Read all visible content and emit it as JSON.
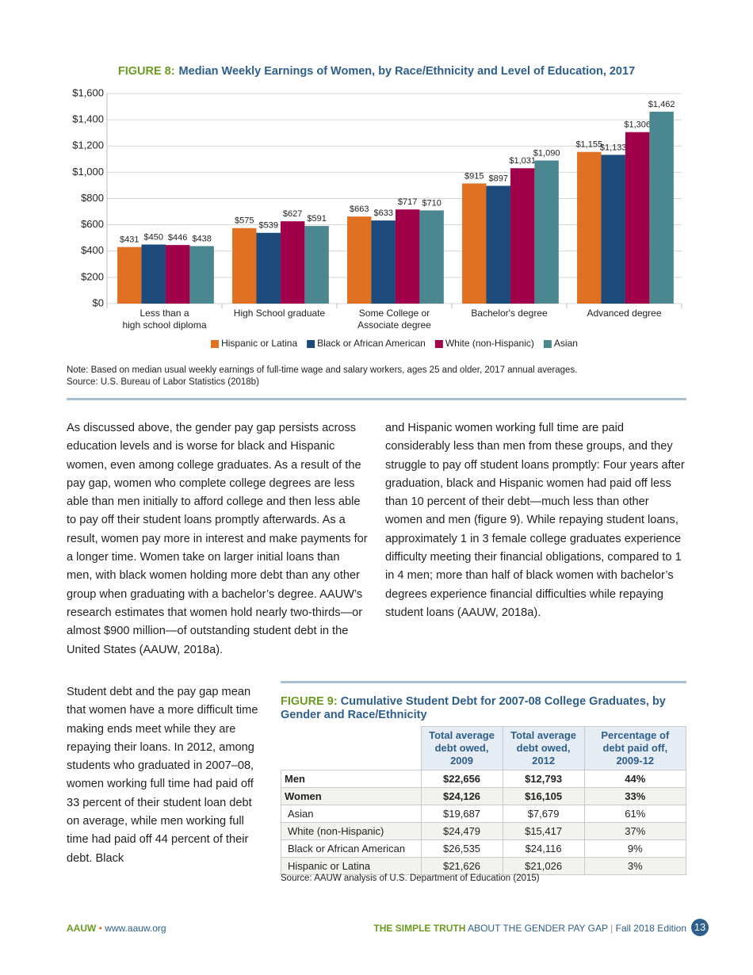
{
  "chart_data": {
    "type": "bar",
    "figure_label": "FIGURE 8:",
    "title": "Median Weekly Earnings of Women, by Race/Ethnicity and Level of Education, 2017",
    "categories": [
      "Less than a\nhigh school diploma",
      "High School graduate",
      "Some College or\nAssociate degree",
      "Bachelor's degree",
      "Advanced degree"
    ],
    "series": [
      {
        "name": "Hispanic or Latina",
        "color": "#e07022",
        "values": [
          431,
          575,
          663,
          915,
          1155
        ],
        "value_labels": [
          "$431",
          "$575",
          "$663",
          "$915",
          "$1,155"
        ]
      },
      {
        "name": "Black or African American",
        "color": "#1c4a7b",
        "values": [
          450,
          539,
          633,
          897,
          1133
        ],
        "value_labels": [
          "$450",
          "$539",
          "$633",
          "$897",
          "$1,133"
        ]
      },
      {
        "name": "White (non-Hispanic)",
        "color": "#a1014b",
        "values": [
          446,
          627,
          717,
          1031,
          1306
        ],
        "value_labels": [
          "$446",
          "$627",
          "$717",
          "$1,031",
          "$1,306"
        ]
      },
      {
        "name": "Asian",
        "color": "#4b8790",
        "values": [
          438,
          591,
          710,
          1090,
          1462
        ],
        "value_labels": [
          "$438",
          "$591",
          "$710",
          "$1,090",
          "$1,462"
        ]
      }
    ],
    "ylim": [
      0,
      1600
    ],
    "yticks": [
      {
        "value": 0,
        "label": "$0"
      },
      {
        "value": 200,
        "label": "$200"
      },
      {
        "value": 400,
        "label": "$400"
      },
      {
        "value": 600,
        "label": "$600"
      },
      {
        "value": 800,
        "label": "$800"
      },
      {
        "value": 1000,
        "label": "$1,000"
      },
      {
        "value": 1200,
        "label": "$1,200"
      },
      {
        "value": 1400,
        "label": "$1,400"
      },
      {
        "value": 1600,
        "label": "$1,600"
      }
    ],
    "grid": true,
    "legend": "bottom",
    "note": "Note: Based on median usual weekly earnings of full-time wage and salary workers, ages 25 and older, 2017 annual averages.",
    "source": "Source: U.S. Bureau of Labor Statistics (2018b)"
  },
  "body": {
    "col1": "As discussed above, the gender pay gap persists across education levels and is worse for black and Hispanic women, even among college graduates. As a result of the pay gap, women who complete college degrees are less able than men initially to afford college and then less able to pay off their student loans promptly afterwards. As a result, women pay more in interest and make payments for a longer time. Women take on larger initial loans than men, with black women holding more debt than any other group when graduating with a bachelor’s degree. AAUW’s research estimates that women hold nearly two-thirds—or almost $900 million—of outstanding student debt in the United States (AAUW, 2018a).",
    "col2": "and Hispanic women working full time are paid considerably less than men from these groups, and they struggle to pay off student loans promptly: Four years after graduation, black and Hispanic women had paid off less than 10 percent of their debt—much less than other women and men (figure 9). While repaying student loans, approximately 1 in 3 female college graduates experience difficulty meeting their financial obligations, compared to 1 in 4 men; more than half of black women with bachelor’s degrees experience financial difficulties while repaying student loans (AAUW, 2018a).",
    "col1b": "Student debt and the pay gap mean that women have a more difficult time making ends meet while they are repaying their loans. In 2012, among students who graduated in 2007–08, women working full time had paid off 33 percent of their student loan debt on average, while men working full time had paid off 44 percent of their debt. Black"
  },
  "figure9": {
    "label": "FIGURE 9:",
    "title": "Cumulative Student Debt for 2007-08 College Graduates, by Gender and Race/Ethnicity",
    "header": [
      "Total average debt owed, 2009",
      "Total average debt owed, 2012",
      "Percentage of debt paid off, 2009-12"
    ],
    "rows": [
      [
        "Men",
        "$22,656",
        "$12,793",
        "44%"
      ],
      [
        "Women",
        "$24,126",
        "$16,105",
        "33%"
      ],
      [
        "Asian",
        "$19,687",
        "$7,679",
        "61%"
      ],
      [
        "White (non-Hispanic)",
        "$24,479",
        "$15,417",
        "37%"
      ],
      [
        "Black or African American",
        "$26,535",
        "$24,116",
        "9%"
      ],
      [
        "Hispanic or Latina",
        "$21,626",
        "$21,026",
        "3%"
      ]
    ],
    "source": "Source: AAUW analysis of U.S. Department of Education (2015)"
  },
  "footer": {
    "org": "AAUW",
    "bullet": "•",
    "url": "www.aauw.org",
    "title_bold": "THE SIMPLE TRUTH",
    "title_rest": "ABOUT THE GENDER PAY GAP",
    "sep": "|",
    "edition": "Fall 2018 Edition",
    "page": "13"
  }
}
